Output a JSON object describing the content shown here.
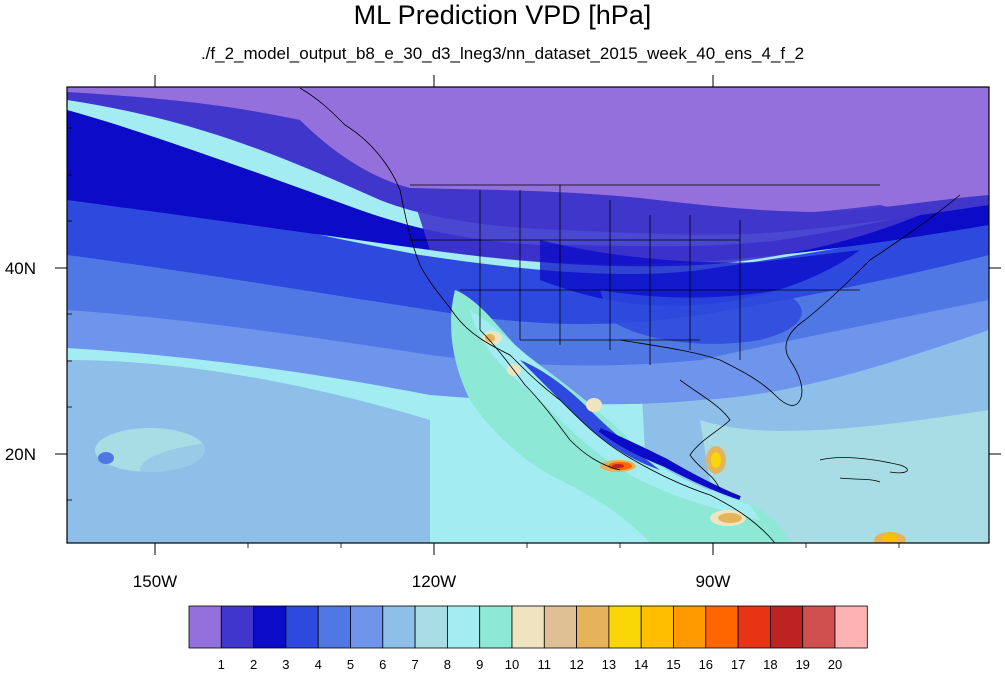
{
  "title": "ML Prediction VPD [hPa]",
  "subtitle": "./f_2_model_output_b8_e_30_d3_lneg3/nn_dataset_2015_week_40_ens_4_f_2",
  "lon_labels": [
    "150W",
    "120W",
    "90W"
  ],
  "lat_labels": [
    "40N",
    "20N"
  ],
  "colorbar": {
    "labels": [
      "1",
      "2",
      "3",
      "4",
      "5",
      "6",
      "7",
      "8",
      "9",
      "10",
      "11",
      "12",
      "13",
      "14",
      "15",
      "16",
      "17",
      "18",
      "19",
      "20"
    ],
    "colors": [
      "#9370db",
      "#4036cc",
      "#0b0bc8",
      "#2e49de",
      "#4f78e4",
      "#6e94ec",
      "#8dbfe9",
      "#a8dde5",
      "#a2ecf2",
      "#8ee8d6",
      "#f0e4c0",
      "#dfc095",
      "#e5b45a",
      "#f9d707",
      "#ffbf00",
      "#ff9a00",
      "#ff6600",
      "#e83414",
      "#bd2323",
      "#d05050",
      "#ffb2b2"
    ]
  }
}
